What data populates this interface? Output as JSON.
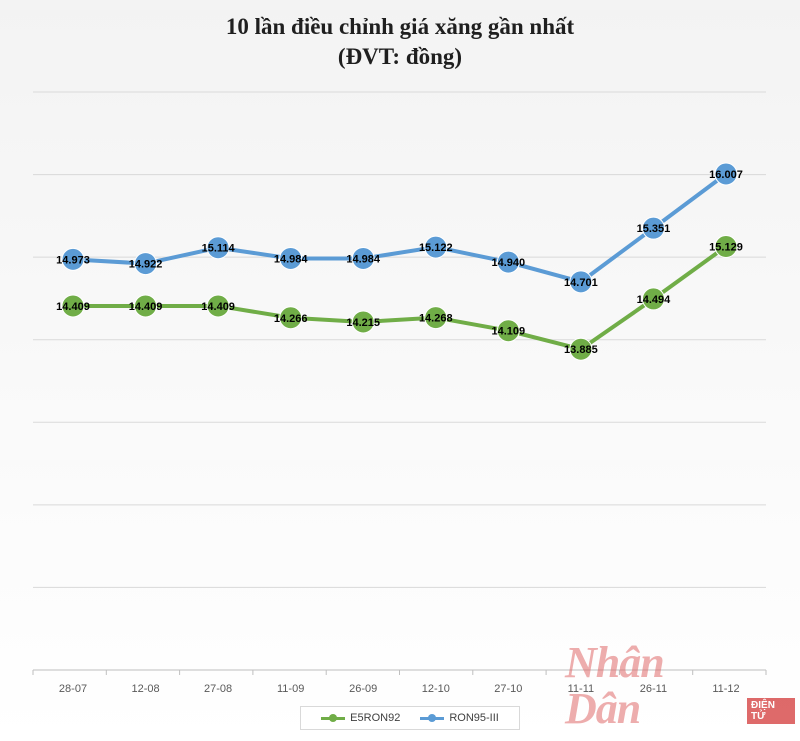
{
  "chart_data": {
    "type": "line",
    "title": "10 lần điều chỉnh giá xăng gần nhất",
    "subtitle": "(ĐVT: đồng)",
    "categories": [
      "28-07",
      "12-08",
      "27-08",
      "11-09",
      "26-09",
      "12-10",
      "27-10",
      "11-11",
      "26-11",
      "11-12"
    ],
    "series": [
      {
        "name": "E5RON92",
        "color": "#70ad47",
        "values": [
          14409,
          14409,
          14409,
          14266,
          14215,
          14268,
          14109,
          13885,
          14494,
          15129
        ],
        "labels": [
          "14.409",
          "14.409",
          "14.409",
          "14.266",
          "14.215",
          "14.268",
          "14.109",
          "13.885",
          "14.494",
          "15.129"
        ]
      },
      {
        "name": "RON95-III",
        "color": "#5b9bd5",
        "values": [
          14973,
          14922,
          15114,
          14984,
          14984,
          15122,
          14940,
          14701,
          15351,
          16007
        ],
        "labels": [
          "14.973",
          "14.922",
          "15.114",
          "14.984",
          "14.984",
          "15.122",
          "14.940",
          "14.701",
          "15.351",
          "16.007"
        ]
      }
    ],
    "ylim": [
      10000,
      17000
    ],
    "grid": true,
    "legend": "bottom"
  },
  "watermark": {
    "brand": "Nhân Dân",
    "badge": "ĐIỆN TỬ"
  }
}
